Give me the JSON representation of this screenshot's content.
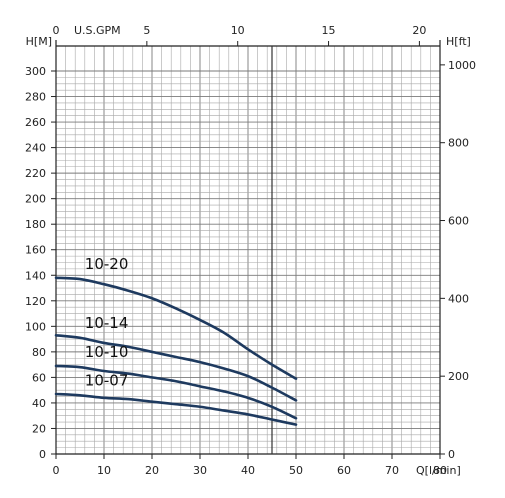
{
  "chart_data": {
    "type": "line",
    "x": [
      0,
      5,
      10,
      15,
      20,
      25,
      30,
      35,
      40,
      45,
      50
    ],
    "xlim": [
      0,
      80
    ],
    "ylim": [
      0,
      300
    ],
    "x_ticks": [
      "0",
      "10",
      "20",
      "30",
      "40",
      "50",
      "60",
      "70",
      "80"
    ],
    "y_ticks": [
      "0",
      "20",
      "40",
      "60",
      "80",
      "100",
      "120",
      "140",
      "160",
      "180",
      "200",
      "220",
      "240",
      "260",
      "280",
      "300"
    ],
    "left_axis_label": "H[M]",
    "right_axis_label": "H[ft]",
    "right_ticks": [
      "0",
      "200",
      "400",
      "600",
      "800",
      "1000"
    ],
    "top_axis_label": "U.S.GPM",
    "top_ticks": [
      "0",
      "5",
      "10",
      "15",
      "20"
    ],
    "bottom_axis_label": "Q[l/min]",
    "series": [
      {
        "name": "10-20",
        "values": [
          138,
          137,
          133,
          128,
          122,
          114,
          105,
          95,
          82,
          70,
          59
        ]
      },
      {
        "name": "10-14",
        "values": [
          93,
          91,
          87,
          84,
          80,
          76,
          72,
          67,
          61,
          52,
          42
        ]
      },
      {
        "name": "10-10",
        "values": [
          69,
          68,
          65,
          63,
          60,
          57,
          53,
          49,
          44,
          37,
          28
        ]
      },
      {
        "name": "10-07",
        "values": [
          47,
          46,
          44,
          43,
          41,
          39,
          37,
          34,
          31,
          27,
          23
        ]
      }
    ],
    "marker_line_x": 45,
    "grid": true,
    "line_color": "#1e3a5f"
  }
}
